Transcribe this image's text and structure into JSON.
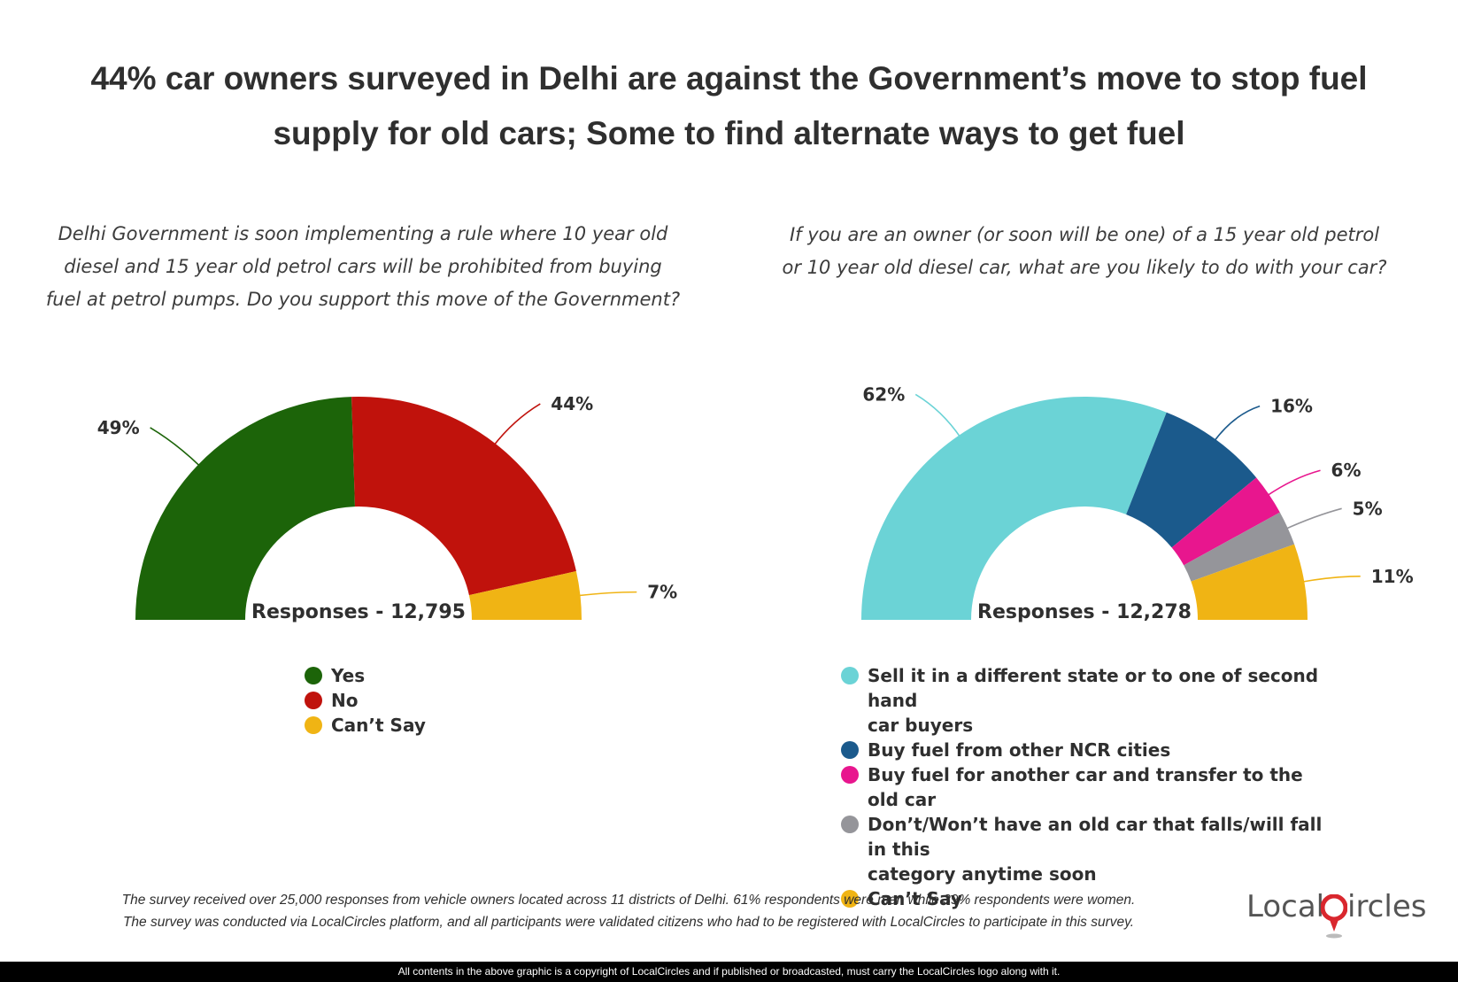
{
  "title_line1": "44% car owners surveyed in Delhi are against the Government’s move to stop fuel",
  "title_line2": "supply for old cars; Some to find alternate ways to get fuel",
  "chart_data": [
    {
      "type": "pie",
      "subtype": "semi-donut",
      "question_lines": [
        "Delhi Government is soon implementing a rule where 10 year old",
        "diesel and 15 year old petrol cars will be prohibited from buying",
        "fuel at petrol pumps. Do you support this move of the Government?"
      ],
      "center_label": "Responses - 12,795",
      "categories": [
        "Yes",
        "No",
        "Can’t Say"
      ],
      "values": [
        49,
        44,
        7
      ],
      "data_labels": [
        "49%",
        "44%",
        "7%"
      ],
      "colors": [
        "#1c6409",
        "#c0120c",
        "#f0b414"
      ],
      "legend_position": "bottom"
    },
    {
      "type": "pie",
      "subtype": "semi-donut",
      "question_lines": [
        "If you are an owner (or soon will be one) of a 15 year old petrol",
        "or 10 year old diesel car, what are you likely to do with your car?"
      ],
      "center_label": "Responses - 12,278",
      "categories": [
        "Sell it in a different state or to one of second hand car buyers",
        "Buy fuel from other NCR cities",
        "Buy fuel for another car and transfer to the old car",
        "Don’t/Won’t have an old car that falls/will fall in this category anytime soon",
        "Can’t Say"
      ],
      "legend_lines": [
        [
          "Sell it in a different state or to one of second hand",
          "car buyers"
        ],
        [
          "Buy fuel from other NCR cities"
        ],
        [
          "Buy fuel for another car and transfer to the old car"
        ],
        [
          "Don’t/Won’t have an old car that falls/will fall in this",
          "category anytime soon"
        ],
        [
          "Can’t Say"
        ]
      ],
      "values": [
        62,
        16,
        6,
        5,
        11
      ],
      "data_labels": [
        "62%",
        "16%",
        "6%",
        "5%",
        "11%"
      ],
      "colors": [
        "#6bd3d6",
        "#1b5a8c",
        "#e8168e",
        "#95959a",
        "#f0b414"
      ],
      "legend_position": "bottom"
    }
  ],
  "footnote_line1": "The survey received over 25,000 responses from vehicle owners located across 11 districts of Delhi. 61% respondents were men while 39% respondents were women.",
  "footnote_line2": "The survey was conducted via LocalCircles platform, and all participants were validated citizens who had to be registered with LocalCircles to participate in this survey.",
  "logo": {
    "text_before": "Local",
    "text_after": "ircles",
    "accent_color": "#d9272e"
  },
  "copyright": "All contents in the above graphic is a copyright of LocalCircles and if published or broadcasted, must carry the LocalCircles logo along with it."
}
